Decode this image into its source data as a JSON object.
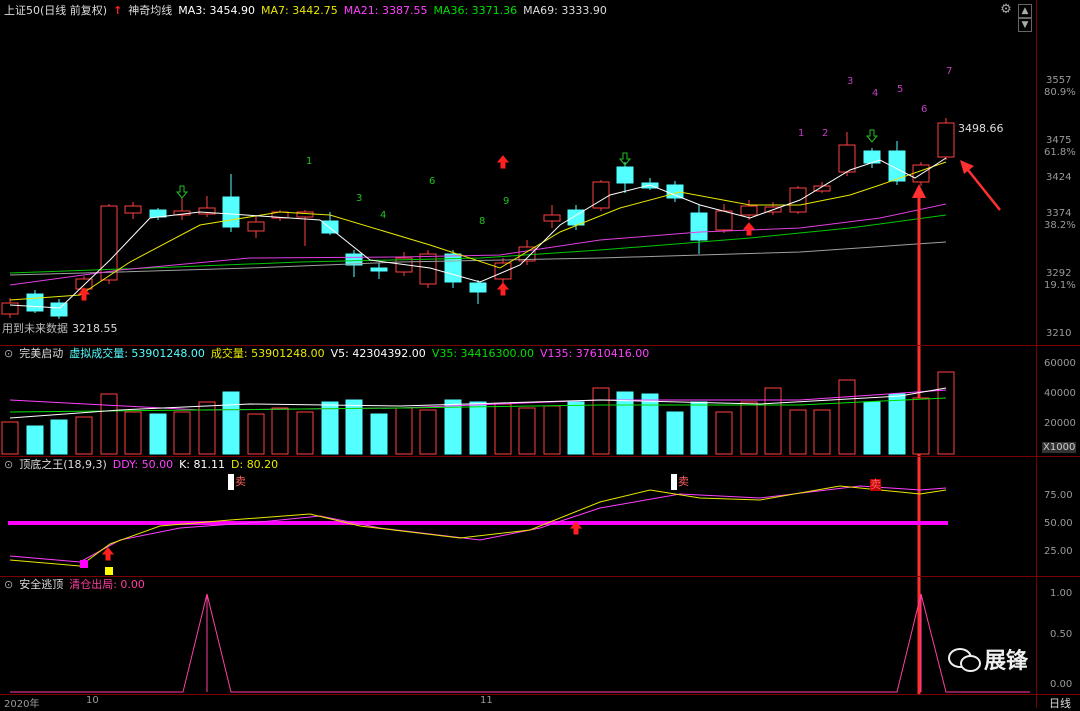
{
  "colors": {
    "background": "#000000",
    "up": "#ff4040",
    "down": "#54ffff",
    "ma3": "#ffffff",
    "ma7": "#e8e800",
    "ma21": "#e040e0",
    "ma36": "#00c800",
    "ma69": "#a0a0a0",
    "kdj_line": "#ff00ff",
    "arrow_red": "#ff2020",
    "arrow_green": "#20c020"
  },
  "main_panel": {
    "title": "上证50(日线 前复权)",
    "indicator_name": "神奇均线",
    "ma": [
      {
        "label": "MA3: 3454.90",
        "color": "#ffffff"
      },
      {
        "label": "MA7: 3442.75",
        "color": "#e8e800"
      },
      {
        "label": "MA21: 3387.55",
        "color": "#ff40ff"
      },
      {
        "label": "MA36: 3371.36",
        "color": "#00e000"
      },
      {
        "label": "MA69: 3333.90",
        "color": "#dddddd"
      }
    ],
    "axis_prices": [
      "3557",
      "3475",
      "3424",
      "3374",
      "3292",
      "3210"
    ],
    "axis_percents": [
      "80.9%",
      "61.8%",
      "38.2%",
      "19.1%"
    ],
    "high_label": "3498.66",
    "low_label": "3218.55",
    "future_note": "用到未来数据",
    "top_numbers": [
      "1",
      "2",
      "3",
      "4",
      "5",
      "6",
      "7"
    ],
    "green_numbers": [
      "1",
      "3",
      "4",
      "6",
      "8",
      "9"
    ]
  },
  "volume_panel": {
    "name": "完美启动",
    "labels": [
      {
        "label": "虚拟成交量: 53901248.00",
        "color": "#54ffff"
      },
      {
        "label": "成交量: 53901248.00",
        "color": "#e8e800"
      },
      {
        "label": "V5: 42304392.00",
        "color": "#ffffff"
      },
      {
        "label": "V35: 34416300.00",
        "color": "#00e000"
      },
      {
        "label": "V135: 37610416.00",
        "color": "#ff40ff"
      }
    ],
    "axis": [
      "60000",
      "40000",
      "20000"
    ],
    "unit": "X1000"
  },
  "kdj_panel": {
    "name": "顶底之王",
    "params": "(18,9,3)",
    "labels": [
      {
        "label": "DDY: 50.00",
        "color": "#ff40ff"
      },
      {
        "label": "K: 81.11",
        "color": "#ffffff"
      },
      {
        "label": "D: 80.20",
        "color": "#e8e800"
      }
    ],
    "axis": [
      "75.00",
      "50.00",
      "25.00"
    ],
    "sell_marker": "卖"
  },
  "escape_panel": {
    "name": "安全逃顶",
    "labels": [
      {
        "label": "清仓出局: 0.00",
        "color": "#ff40a0"
      }
    ],
    "axis": [
      "1.00",
      "0.50",
      "0.00"
    ]
  },
  "time_axis": {
    "labels": [
      "2020年",
      "10",
      "11"
    ],
    "period": "日线"
  },
  "watermark": "展锋"
}
